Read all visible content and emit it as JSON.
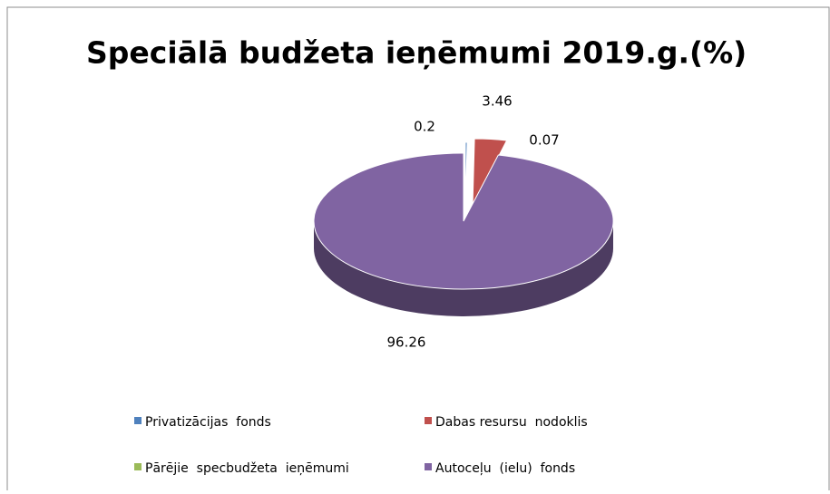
{
  "chart_data": {
    "type": "pie3d",
    "title": "Speciālā budžeta ieņēmumi 2019.g.(%)",
    "categories": [
      "Privatizācijas  fonds",
      "Dabas resursu  nodoklis",
      "Pārējie  specbudžeta  ieņēmumi",
      "Autoceļu  (ielu)  fonds"
    ],
    "values": [
      0.2,
      3.46,
      0.07,
      96.26
    ],
    "colors": [
      "#4f81bd",
      "#c0504d",
      "#9bbb59",
      "#8064a2"
    ],
    "legend": "bottom"
  }
}
